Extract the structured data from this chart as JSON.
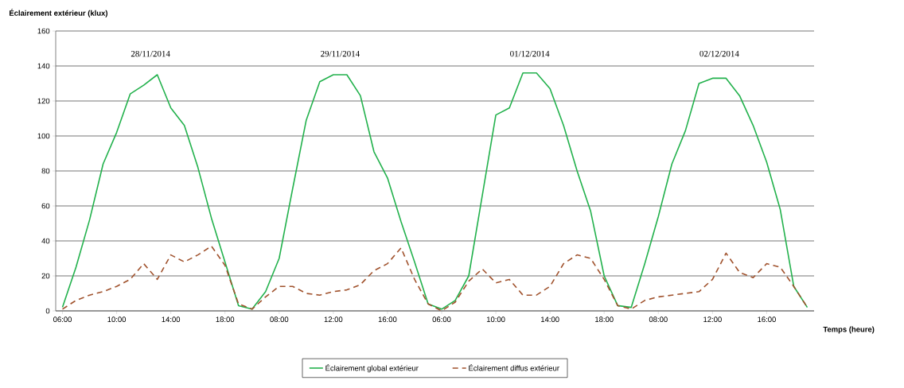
{
  "chart_data": {
    "type": "line",
    "ylabel": "Éclairement extérieur (klux)",
    "xlabel": "Temps (heure)",
    "categories": [
      "06:00",
      null,
      null,
      null,
      "10:00",
      null,
      null,
      null,
      "14:00",
      null,
      null,
      null,
      "18:00",
      null,
      null,
      null,
      "08:00",
      null,
      null,
      null,
      "12:00",
      null,
      null,
      null,
      "16:00",
      null,
      null,
      null,
      "06:00",
      null,
      null,
      null,
      "10:00",
      null,
      null,
      null,
      "14:00",
      null,
      null,
      null,
      "18:00",
      null,
      null,
      null,
      "08:00",
      null,
      null,
      null,
      "12:00",
      null,
      null,
      null,
      "16:00",
      null,
      null,
      null
    ],
    "series": [
      {
        "name": "Éclairement global extérieur",
        "color": "#22b14c",
        "line_style": "solid",
        "values": [
          2,
          25,
          52,
          84,
          102,
          124,
          129,
          135,
          116,
          106,
          82,
          53,
          28,
          3,
          1,
          11,
          30,
          70,
          109,
          131,
          135,
          135,
          123,
          91,
          76,
          51,
          28,
          4,
          1,
          6,
          20,
          66,
          112,
          116,
          136,
          136,
          127,
          106,
          80,
          57,
          20,
          3,
          2,
          27,
          54,
          84,
          103,
          130,
          133,
          133,
          123,
          106,
          85,
          58,
          14,
          2
        ]
      },
      {
        "name": "Éclairement diffus extérieur",
        "color": "#a0522d",
        "line_style": "dashed",
        "values": [
          1,
          6,
          9,
          11,
          14,
          18,
          27,
          18,
          32,
          28,
          32,
          37,
          26,
          4,
          1,
          8,
          14,
          14,
          10,
          9,
          11,
          12,
          15,
          23,
          27,
          36,
          18,
          4,
          0,
          5,
          17,
          24,
          16,
          18,
          9,
          9,
          14,
          27,
          32,
          30,
          18,
          3,
          1,
          6,
          8,
          9,
          10,
          11,
          18,
          33,
          22,
          19,
          27,
          25,
          14,
          2
        ]
      }
    ],
    "ylim": [
      0,
      160
    ],
    "yticks": [
      0,
      20,
      40,
      60,
      80,
      100,
      120,
      140,
      160
    ],
    "grid": "y",
    "legend": "bottom",
    "annotations": [
      "28/11/2014",
      "29/11/2014",
      "01/12/2014",
      "02/12/2014"
    ]
  }
}
